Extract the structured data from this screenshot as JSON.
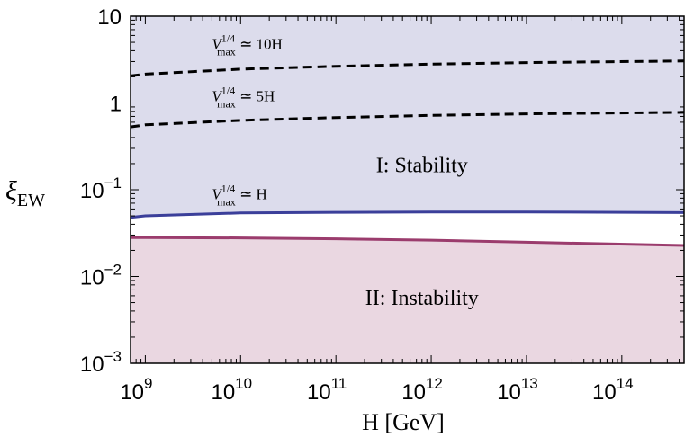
{
  "chart_data": {
    "type": "area",
    "title": "",
    "xlabel": "H [GeV]",
    "ylabel": "ξ_EW",
    "xscale": "log",
    "yscale": "log",
    "xlim": [
      700000000.0,
      450000000000000.0
    ],
    "ylim": [
      0.001,
      10
    ],
    "x_ticks": [
      {
        "value": 1000000000.0,
        "base": "10",
        "exp": "9"
      },
      {
        "value": 10000000000.0,
        "base": "10",
        "exp": "10"
      },
      {
        "value": 100000000000.0,
        "base": "10",
        "exp": "11"
      },
      {
        "value": 1000000000000.0,
        "base": "10",
        "exp": "12"
      },
      {
        "value": 10000000000000.0,
        "base": "10",
        "exp": "13"
      },
      {
        "value": 100000000000000.0,
        "base": "10",
        "exp": "14"
      }
    ],
    "y_ticks": [
      {
        "value": 0.001,
        "base": "10",
        "exp": "−3"
      },
      {
        "value": 0.01,
        "base": "10",
        "exp": "−2"
      },
      {
        "value": 0.1,
        "base": "10",
        "exp": "−1"
      },
      {
        "value": 1,
        "base": "1",
        "exp": ""
      },
      {
        "value": 10,
        "base": "10",
        "exp": ""
      }
    ],
    "regions": [
      {
        "label": "I: Stability",
        "color": "#dcdcec",
        "label_x": 800000000000.0,
        "label_y": 0.16
      },
      {
        "label": "II: Instability",
        "color": "#ead7e1",
        "label_x": 800000000000.0,
        "label_y": 0.0047
      }
    ],
    "series": [
      {
        "style": "dashed",
        "color": "#000000",
        "label_main": "V",
        "label_sup": "1/4",
        "label_sub": "max",
        "label_rest": " ≃ 10H",
        "label_x": 5000000000.0,
        "label_y": 4.2,
        "x": [
          700000000.0,
          1000000000.0,
          10000000000.0,
          100000000000.0,
          1000000000000.0,
          10000000000000.0,
          450000000000000.0
        ],
        "y": [
          2.05,
          2.15,
          2.45,
          2.65,
          2.8,
          2.92,
          3.05
        ]
      },
      {
        "style": "dashed",
        "color": "#000000",
        "label_main": "V",
        "label_sup": "1/4",
        "label_sub": "max",
        "label_rest": " ≃ 5H",
        "label_x": 5000000000.0,
        "label_y": 1.05,
        "x": [
          700000000.0,
          1000000000.0,
          10000000000.0,
          100000000000.0,
          1000000000000.0,
          10000000000000.0,
          450000000000000.0
        ],
        "y": [
          0.53,
          0.56,
          0.63,
          0.68,
          0.72,
          0.75,
          0.78
        ]
      },
      {
        "style": "solid",
        "color": "#3b3f9a",
        "label_main": "V",
        "label_sup": "1/4",
        "label_sub": "max",
        "label_rest": " ≃ H",
        "label_x": 5000000000.0,
        "label_y": 0.078,
        "x": [
          700000000.0,
          1000000000.0,
          10000000000.0,
          100000000000.0,
          1000000000000.0,
          10000000000000.0,
          450000000000000.0
        ],
        "y": [
          0.048,
          0.05,
          0.054,
          0.055,
          0.0555,
          0.0555,
          0.0545
        ]
      },
      {
        "style": "solid",
        "color": "#9b3c6d",
        "x": [
          700000000.0,
          1000000000.0,
          10000000000.0,
          100000000000.0,
          1000000000000.0,
          10000000000000.0,
          450000000000000.0
        ],
        "y": [
          0.028,
          0.028,
          0.0278,
          0.0272,
          0.0262,
          0.0248,
          0.0228
        ]
      }
    ]
  }
}
